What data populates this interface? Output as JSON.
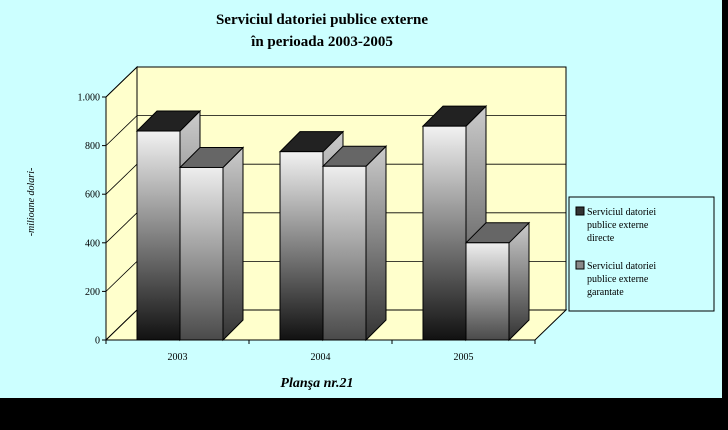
{
  "chart_data": {
    "type": "bar",
    "title_line1": "Serviciul datoriei publice externe",
    "title_line2": "în perioada 2003-2005",
    "ylabel": "-milioane dolari-",
    "caption": "Planşa nr.21",
    "categories": [
      "2003",
      "2004",
      "2005"
    ],
    "ylim": [
      0,
      1000
    ],
    "yticks": [
      0,
      200,
      400,
      600,
      800,
      1000
    ],
    "ytick_labels": [
      "0",
      "200",
      "400",
      "600",
      "800",
      "1.000"
    ],
    "series": [
      {
        "name": "Serviciul datoriei publice externe directe",
        "legend_lines": [
          "Serviciul datoriei",
          "publice externe",
          "directe"
        ],
        "values": [
          860,
          775,
          880
        ],
        "color_light": "#f2f2f2",
        "color_dark": "#111111"
      },
      {
        "name": "Serviciul datoriei publice externe garantate",
        "legend_lines": [
          "Serviciul datoriei",
          "publice externe",
          "garantate"
        ],
        "values": [
          710,
          715,
          400
        ],
        "color_light": "#eeeeee",
        "color_dark": "#4a4a4a"
      }
    ],
    "grid": true,
    "legend_position": "right",
    "colors": {
      "background": "#ccffff",
      "wall": "#ffffcc",
      "outer": "#000000"
    }
  }
}
